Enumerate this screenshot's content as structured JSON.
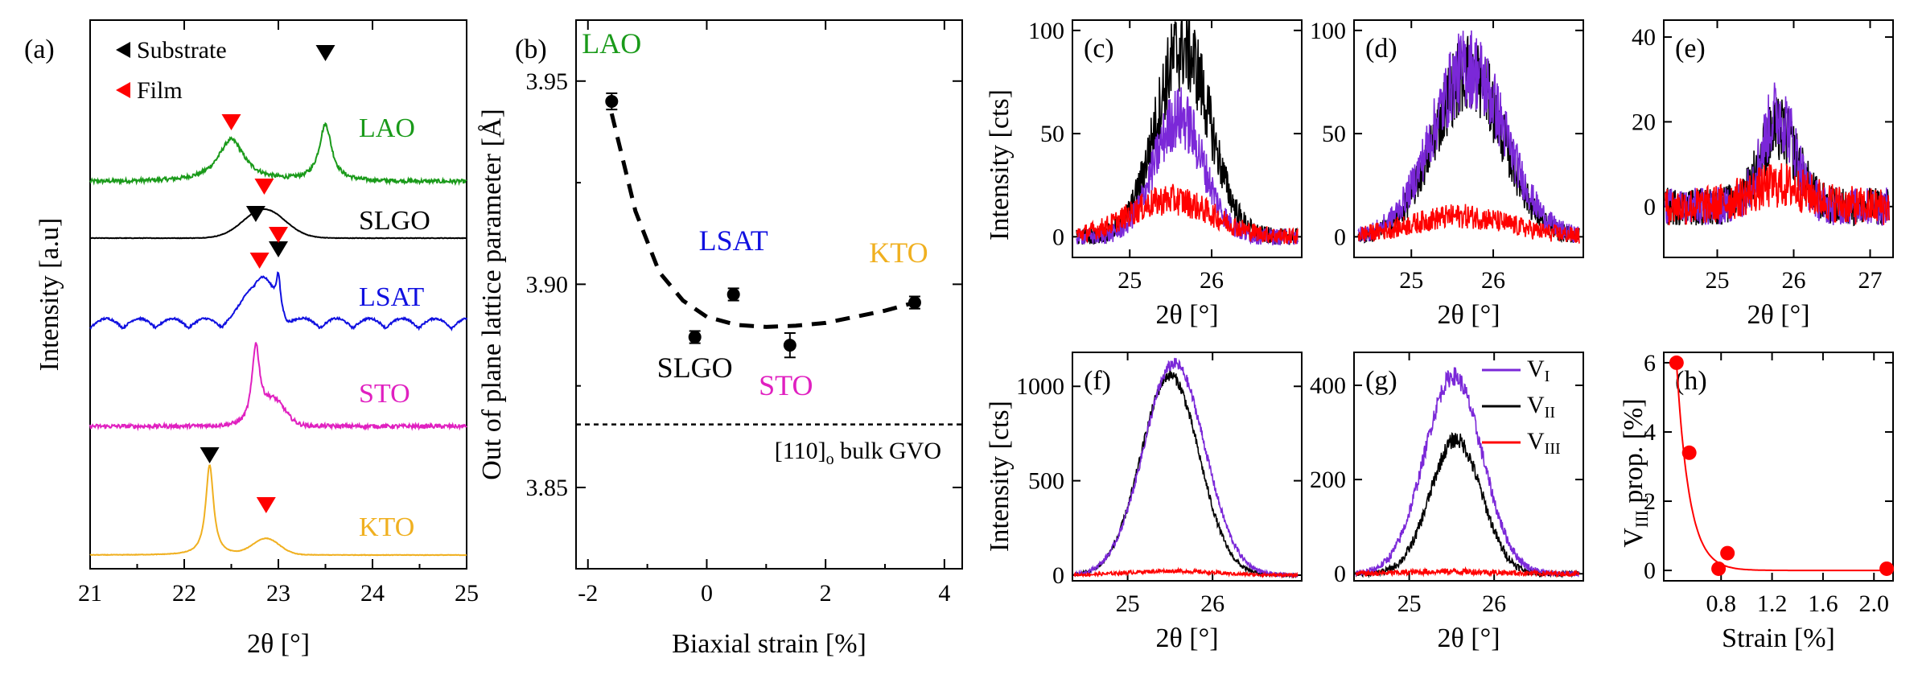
{
  "chart_data": [
    {
      "panel": "(a)",
      "type": "line",
      "xlabel": "2θ [°]",
      "ylabel": "Intensity [a.u]",
      "xlim": [
        21,
        25
      ],
      "xticks": [
        "21",
        "22",
        "23",
        "24",
        "25"
      ],
      "legend": [
        {
          "label": "Substrate",
          "marker": "triangle-left",
          "color": "#000000"
        },
        {
          "label": "Film",
          "marker": "triangle-left",
          "color": "#ff0000"
        }
      ],
      "series": [
        {
          "name": "LAO",
          "color": "#1a9a1a",
          "substrate_peak": 23.5,
          "film_peak": 22.5
        },
        {
          "name": "SLGO",
          "color": "#000000",
          "film_peak": 22.85
        },
        {
          "name": "LSAT",
          "color": "#1010e0",
          "substrate_peak": 23.0,
          "film_peak": 22.8
        },
        {
          "name": "STO",
          "color": "#e020c0",
          "substrate_peak": 22.76,
          "film_peak": 23.0
        },
        {
          "name": "KTO",
          "color": "#f0b020",
          "substrate_peak": 22.27,
          "film_peak": 22.87
        }
      ]
    },
    {
      "panel": "(b)",
      "type": "scatter",
      "xlabel": "Biaxial strain [%]",
      "ylabel": "Out of plane lattice parameter [Å]",
      "xlim": [
        -2.2,
        4.3
      ],
      "ylim": [
        3.83,
        3.965
      ],
      "xticks": [
        "-2",
        "0",
        "2",
        "4"
      ],
      "yticks": [
        "3.85",
        "3.90",
        "3.95"
      ],
      "points": [
        {
          "label": "LAO",
          "x": -1.6,
          "y": 3.945,
          "err": 0.002,
          "color": "#1a9a1a"
        },
        {
          "label": "SLGO",
          "x": -0.2,
          "y": 3.887,
          "err": 0.0015,
          "color": "#000000"
        },
        {
          "label": "LSAT",
          "x": 0.45,
          "y": 3.8975,
          "err": 0.0015,
          "color": "#1010e0"
        },
        {
          "label": "STO",
          "x": 1.4,
          "y": 3.885,
          "err": 0.003,
          "color": "#e020c0"
        },
        {
          "label": "KTO",
          "x": 3.5,
          "y": 3.8955,
          "err": 0.0015,
          "color": "#f0b020"
        }
      ],
      "fit_curve": {
        "x": [
          -1.6,
          -1.2,
          -0.8,
          -0.4,
          0.0,
          0.5,
          1.0,
          1.5,
          2.0,
          2.5,
          3.0,
          3.5
        ],
        "y": [
          3.942,
          3.918,
          3.903,
          3.896,
          3.892,
          3.89,
          3.8895,
          3.8898,
          3.8905,
          3.892,
          3.8935,
          3.8955
        ]
      },
      "reference_line": {
        "y": 3.8655,
        "label": "[110]o bulk GVO",
        "main": "[110]",
        "sub": "o",
        "rest": " bulk GVO"
      }
    },
    {
      "panel": "(c)",
      "type": "line",
      "xlabel": "2θ [°]",
      "ylabel": "Intensity [cts]",
      "xlim": [
        24.3,
        27.1
      ],
      "ylim": [
        -10,
        105
      ],
      "xticks": [
        "25",
        "26"
      ],
      "yticks": [
        "0",
        "50",
        "100"
      ],
      "series": [
        {
          "name": "VI",
          "color": "#7b28d8",
          "peak": 25.6,
          "amp": 58,
          "width": 0.3
        },
        {
          "name": "VII",
          "color": "#000000",
          "peak": 25.65,
          "amp": 92,
          "width": 0.33
        },
        {
          "name": "VIII",
          "color": "#ff0000",
          "peak": 25.5,
          "amp": 18,
          "width": 0.5
        }
      ]
    },
    {
      "panel": "(d)",
      "type": "line",
      "xlabel": "2θ [°]",
      "ylabel": "",
      "xlim": [
        24.3,
        27.1
      ],
      "ylim": [
        -10,
        105
      ],
      "xticks": [
        "25",
        "26"
      ],
      "yticks": [
        "0",
        "50",
        "100"
      ],
      "series": [
        {
          "name": "VI",
          "color": "#7b28d8",
          "peak": 25.7,
          "amp": 82,
          "width": 0.45
        },
        {
          "name": "VII",
          "color": "#000000",
          "peak": 25.7,
          "amp": 80,
          "width": 0.42
        },
        {
          "name": "VIII",
          "color": "#ff0000",
          "peak": 25.6,
          "amp": 10,
          "width": 0.6
        }
      ]
    },
    {
      "panel": "(e)",
      "type": "line",
      "xlabel": "2θ [°]",
      "ylabel": "",
      "xlim": [
        24.3,
        27.3
      ],
      "ylim": [
        -12,
        44
      ],
      "xticks": [
        "25",
        "26",
        "27"
      ],
      "yticks": [
        "0",
        "20",
        "40"
      ],
      "series": [
        {
          "name": "VI",
          "color": "#7b28d8",
          "peak": 25.8,
          "amp": 22,
          "width": 0.22
        },
        {
          "name": "VII",
          "color": "#000000",
          "peak": 25.8,
          "amp": 18,
          "width": 0.25
        },
        {
          "name": "VIII",
          "color": "#ff0000",
          "peak": 25.8,
          "amp": 5,
          "width": 0.4
        }
      ]
    },
    {
      "panel": "(f)",
      "type": "line",
      "xlabel": "2θ [°]",
      "ylabel": "Intensity [cts]",
      "xlim": [
        24.35,
        27.05
      ],
      "ylim": [
        -30,
        1180
      ],
      "xticks": [
        "25",
        "26"
      ],
      "yticks": [
        "0",
        "500",
        "1000"
      ],
      "series": [
        {
          "name": "VI",
          "color": "#7b28d8",
          "peak": 25.55,
          "amp": 1120,
          "width": 0.36
        },
        {
          "name": "VII",
          "color": "#000000",
          "peak": 25.5,
          "amp": 1060,
          "width": 0.34
        },
        {
          "name": "VIII",
          "color": "#ff0000",
          "peak": 25.5,
          "amp": 22,
          "width": 0.5
        }
      ]
    },
    {
      "panel": "(g)",
      "type": "line",
      "xlabel": "2θ [°]",
      "ylabel": "",
      "xlim": [
        24.35,
        27.05
      ],
      "ylim": [
        -15,
        470
      ],
      "xticks": [
        "25",
        "26"
      ],
      "yticks": [
        "0",
        "200",
        "400"
      ],
      "legend": [
        "VI",
        "VII",
        "VIII"
      ],
      "series": [
        {
          "name": "VI",
          "color": "#7b28d8",
          "peak": 25.52,
          "amp": 420,
          "width": 0.34
        },
        {
          "name": "VII",
          "color": "#000000",
          "peak": 25.55,
          "amp": 285,
          "width": 0.3
        },
        {
          "name": "VIII",
          "color": "#ff0000",
          "peak": 25.5,
          "amp": 5,
          "width": 0.5
        }
      ]
    },
    {
      "panel": "(h)",
      "type": "scatter",
      "xlabel": "Strain [%]",
      "ylabel": "VIII prop. [%]",
      "xlim": [
        0.35,
        2.15
      ],
      "ylim": [
        -0.3,
        6.3
      ],
      "xticks": [
        "0.8",
        "1.2",
        "1.6",
        "2.0"
      ],
      "yticks": [
        "0",
        "2",
        "4",
        "6"
      ],
      "points": [
        {
          "x": 0.45,
          "y": 6.0
        },
        {
          "x": 0.55,
          "y": 3.4
        },
        {
          "x": 0.78,
          "y": 0.05
        },
        {
          "x": 0.85,
          "y": 0.5
        },
        {
          "x": 2.1,
          "y": 0.05
        }
      ],
      "fit_curve": {
        "type": "exponential decay",
        "color": "#ff0000"
      }
    }
  ],
  "panel_labels": {
    "a": "(a)",
    "b": "(b)",
    "c": "(c)",
    "d": "(d)",
    "e": "(e)",
    "f": "(f)",
    "g": "(g)",
    "h": "(h)"
  },
  "legend_a": {
    "substrate": "Substrate",
    "film": "Film"
  },
  "legend_g": {
    "v1": "V",
    "v1sub": "I",
    "v2": "V",
    "v2sub": "II",
    "v3": "V",
    "v3sub": "III"
  },
  "labels": {
    "a_xlabel": "2θ [°]",
    "a_ylabel": "Intensity [a.u]",
    "b_xlabel": "Biaxial strain [%]",
    "b_ylabel": "Out of plane lattice parameter [Å]",
    "b_ref_main": "[110]",
    "b_ref_sub": "o",
    "b_ref_rest": " bulk GVO",
    "c_ylabel": "Intensity [cts]",
    "f_ylabel": "Intensity [cts]",
    "theta": "2θ [°]",
    "h_xlabel": "Strain [%]",
    "h_ylabel_main": "V",
    "h_ylabel_sub": "III",
    "h_ylabel_rest": " prop. [%]"
  }
}
